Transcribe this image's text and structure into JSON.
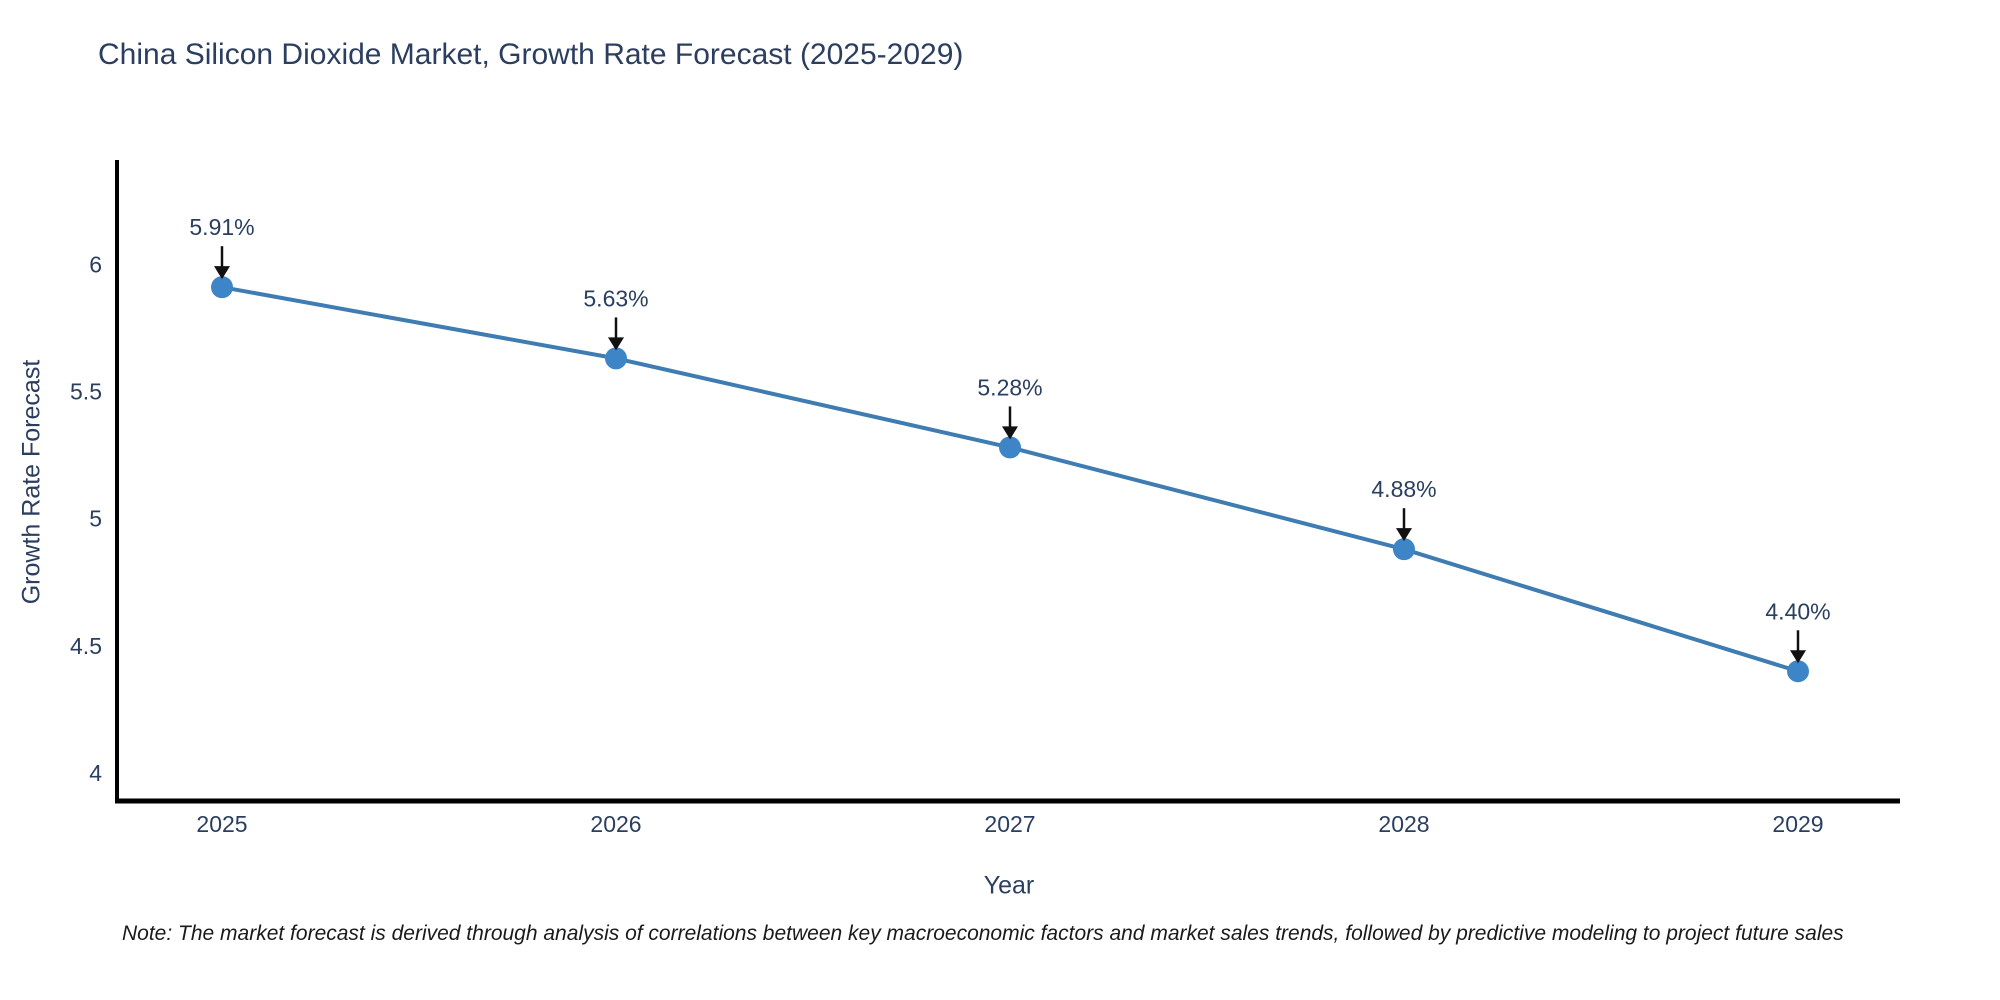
{
  "chart_data": {
    "type": "line",
    "title": "China Silicon Dioxide Market, Growth Rate Forecast (2025-2029)",
    "xlabel": "Year",
    "ylabel": "Growth Rate Forecast",
    "categories": [
      "2025",
      "2026",
      "2027",
      "2028",
      "2029"
    ],
    "series": [
      {
        "name": "Growth Rate Forecast",
        "values": [
          5.91,
          5.63,
          5.28,
          4.88,
          4.4
        ],
        "point_labels": [
          "5.91%",
          "5.63%",
          "5.28%",
          "4.88%",
          "4.40%"
        ]
      }
    ],
    "yticks": [
      4,
      4.5,
      5,
      5.5,
      6
    ],
    "ytick_labels": [
      "4",
      "4.5",
      "5",
      "5.5",
      "6"
    ],
    "ylim": [
      3.89,
      6.41
    ],
    "grid": false,
    "legend": "none",
    "annotation_style": "label-with-down-arrow-at-each-point",
    "note": "Note: The market forecast is derived through analysis of correlations between key macroeconomic factors and market sales trends, followed by predictive modeling to project future sales",
    "colors": {
      "line": "#3e7cb1",
      "marker": "#3d85c6",
      "axis": "#000000",
      "tick_text": "#2a3f5f",
      "title_text": "#2c3e5f",
      "annotation_text": "#2a3f5f",
      "annotation_arrow": "#111111",
      "note_text": "#1a1a1a",
      "background": "#ffffff"
    }
  }
}
